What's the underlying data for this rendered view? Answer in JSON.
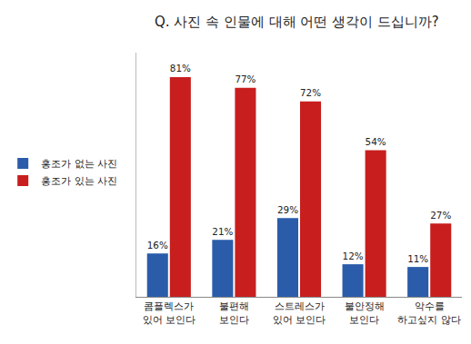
{
  "chart_data": {
    "type": "bar",
    "title": "Q. 사진 속 인물에 대해 어떤 생각이 드십니까?",
    "categories": [
      "콤플렉스가 있어 보인다",
      "불편해 보인다",
      "스트레스가 있어 보인다",
      "불안정해 보인다",
      "악수를 하고싶지 않다"
    ],
    "series": [
      {
        "name": "홍조가 없는 사진",
        "color": "#2a5caa",
        "values": [
          16,
          21,
          29,
          12,
          11
        ],
        "value_labels": [
          "16%",
          "21%",
          "29%",
          "12%",
          "11%"
        ]
      },
      {
        "name": "홍조가 있는 사진",
        "color": "#c81e1e",
        "values": [
          81,
          77,
          72,
          54,
          27
        ],
        "value_labels": [
          "81%",
          "77%",
          "72%",
          "54%",
          "27%"
        ]
      }
    ],
    "ylim": [
      0,
      90
    ],
    "grid": false,
    "legend": "left",
    "data_labels": true,
    "tick_labels": "x"
  }
}
